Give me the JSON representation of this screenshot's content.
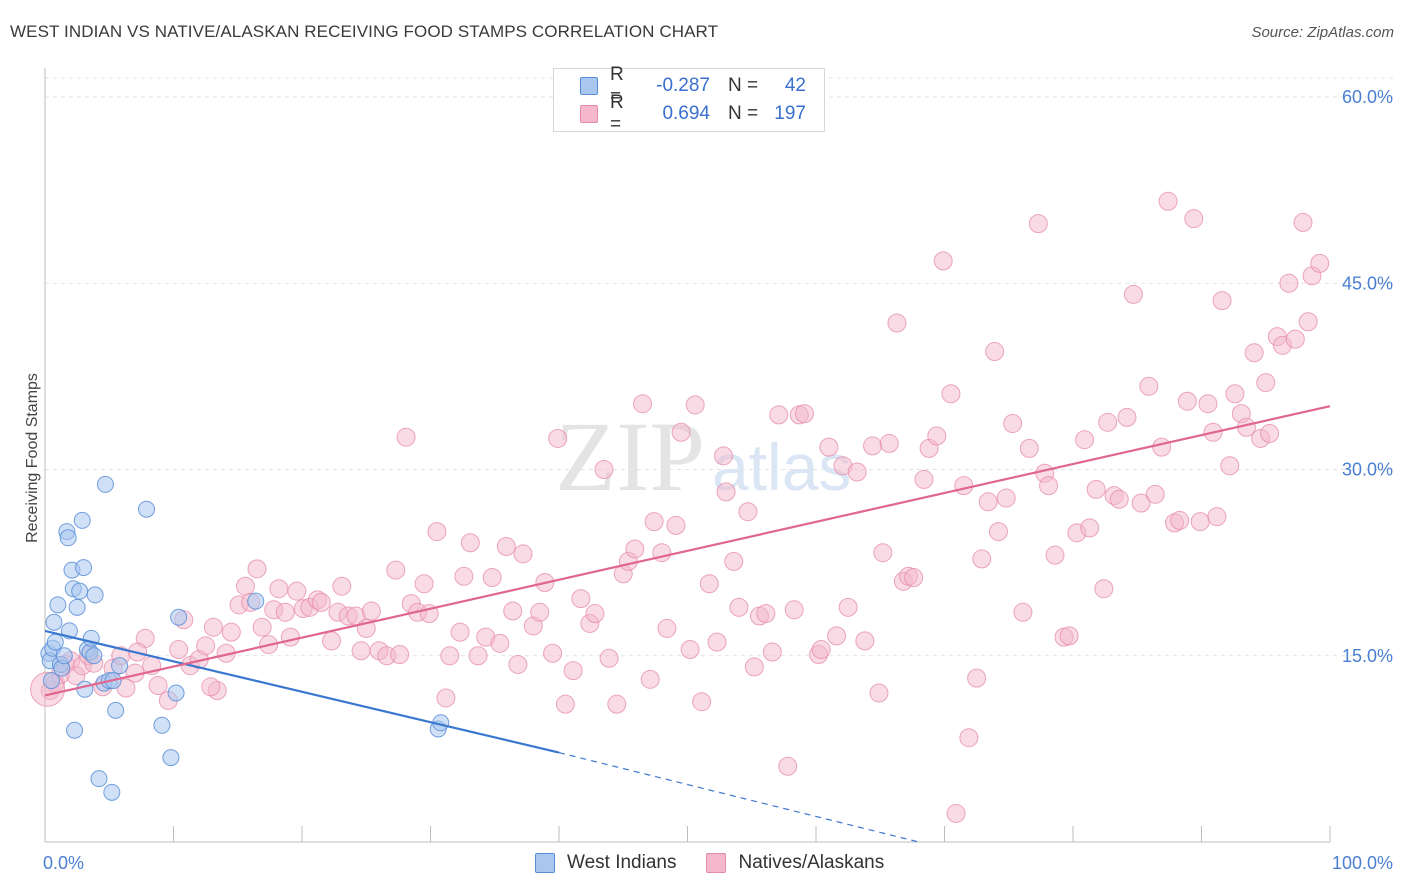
{
  "title": "WEST INDIAN VS NATIVE/ALASKAN RECEIVING FOOD STAMPS CORRELATION CHART",
  "source": "Source: ZipAtlas.com",
  "watermark": {
    "zip": "ZIP",
    "atlas": "atlas"
  },
  "legend": {
    "r_label": "R =",
    "n_label": "N =",
    "rows": [
      {
        "r": "-0.287",
        "n": "42"
      },
      {
        "r": "0.694",
        "n": "197"
      }
    ]
  },
  "colors": {
    "blue_fill": "#a9c6ee",
    "blue_stroke": "#5a8fd8",
    "blue_line": "#3a78d0",
    "pink_fill": "#f4b7cb",
    "pink_stroke": "#e58aa8",
    "pink_line": "#e0668f",
    "tick": "#4a7fd1",
    "grid": "#e2e2e2"
  },
  "chart_data": {
    "type": "scatter",
    "title": "WEST INDIAN VS NATIVE/ALASKAN RECEIVING FOOD STAMPS CORRELATION CHART",
    "xlabel": "",
    "ylabel": "Receiving Food Stamps",
    "xlim": [
      0,
      100
    ],
    "ylim": [
      0,
      60
    ],
    "x_tick_labels": [
      "0.0%",
      "100.0%"
    ],
    "y_ticks": [
      15,
      30,
      45,
      60
    ],
    "y_tick_labels": [
      "15.0%",
      "30.0%",
      "45.0%",
      "60.0%"
    ],
    "grid": true,
    "legend_position": "top-center",
    "series": [
      {
        "name": "West Indians",
        "r": -0.287,
        "n": 42,
        "trend": {
          "x": [
            0,
            40
          ],
          "y": [
            17.0,
            7.2
          ],
          "dashed_to": [
            68,
            0.0
          ]
        },
        "points": [
          [
            0.3,
            15.2
          ],
          [
            0.4,
            14.6
          ],
          [
            0.5,
            13.0
          ],
          [
            0.6,
            15.6
          ],
          [
            0.7,
            17.7
          ],
          [
            0.8,
            16.1
          ],
          [
            1.0,
            19.1
          ],
          [
            1.2,
            14.3
          ],
          [
            1.3,
            14.0
          ],
          [
            1.5,
            15.0
          ],
          [
            1.7,
            25.0
          ],
          [
            1.8,
            24.5
          ],
          [
            1.9,
            17.0
          ],
          [
            2.1,
            21.9
          ],
          [
            2.2,
            20.4
          ],
          [
            2.3,
            9.0
          ],
          [
            2.5,
            18.9
          ],
          [
            2.7,
            20.2
          ],
          [
            2.9,
            25.9
          ],
          [
            3.0,
            22.1
          ],
          [
            3.1,
            12.3
          ],
          [
            3.3,
            15.5
          ],
          [
            3.5,
            15.3
          ],
          [
            3.6,
            16.4
          ],
          [
            3.9,
            19.9
          ],
          [
            4.2,
            5.1
          ],
          [
            4.6,
            12.8
          ],
          [
            4.7,
            28.8
          ],
          [
            5.0,
            13.0
          ],
          [
            5.2,
            4.0
          ],
          [
            5.5,
            10.6
          ],
          [
            5.8,
            14.2
          ],
          [
            7.9,
            26.8
          ],
          [
            9.1,
            9.4
          ],
          [
            9.8,
            6.8
          ],
          [
            10.2,
            12.0
          ],
          [
            10.4,
            18.1
          ],
          [
            16.4,
            19.4
          ],
          [
            30.6,
            9.1
          ],
          [
            30.8,
            9.6
          ],
          [
            5.3,
            13.0
          ],
          [
            3.8,
            15.0
          ]
        ]
      },
      {
        "name": "Natives/Alaskans",
        "r": 0.694,
        "n": 197,
        "trend": {
          "x": [
            0,
            100
          ],
          "y": [
            11.8,
            35.1
          ]
        },
        "points": [
          [
            0.4,
            12.2
          ],
          [
            0.8,
            12.8
          ],
          [
            1.2,
            13.5
          ],
          [
            1.6,
            14.3
          ],
          [
            2.0,
            14.6
          ],
          [
            2.4,
            13.4
          ],
          [
            2.9,
            14.2
          ],
          [
            3.4,
            15.0
          ],
          [
            3.8,
            14.4
          ],
          [
            4.5,
            12.5
          ],
          [
            5.3,
            14.0
          ],
          [
            5.9,
            15.0
          ],
          [
            6.3,
            12.4
          ],
          [
            7.0,
            13.6
          ],
          [
            7.8,
            16.4
          ],
          [
            8.3,
            14.2
          ],
          [
            8.8,
            12.6
          ],
          [
            9.6,
            11.4
          ],
          [
            10.4,
            15.5
          ],
          [
            10.8,
            17.9
          ],
          [
            11.3,
            14.2
          ],
          [
            12.0,
            14.7
          ],
          [
            12.5,
            15.8
          ],
          [
            13.1,
            17.3
          ],
          [
            13.4,
            12.2
          ],
          [
            14.1,
            15.2
          ],
          [
            14.5,
            16.9
          ],
          [
            15.1,
            19.1
          ],
          [
            15.6,
            20.6
          ],
          [
            16.0,
            19.3
          ],
          [
            16.5,
            22.0
          ],
          [
            16.9,
            17.3
          ],
          [
            17.4,
            15.9
          ],
          [
            17.8,
            18.7
          ],
          [
            18.2,
            20.4
          ],
          [
            18.7,
            18.5
          ],
          [
            19.1,
            16.5
          ],
          [
            19.6,
            20.2
          ],
          [
            20.1,
            18.8
          ],
          [
            20.6,
            18.9
          ],
          [
            21.2,
            19.5
          ],
          [
            21.5,
            19.3
          ],
          [
            22.3,
            16.2
          ],
          [
            22.8,
            18.5
          ],
          [
            23.1,
            20.6
          ],
          [
            23.6,
            18.2
          ],
          [
            24.2,
            18.2
          ],
          [
            24.6,
            15.4
          ],
          [
            25.0,
            17.2
          ],
          [
            25.4,
            18.6
          ],
          [
            26.0,
            15.4
          ],
          [
            26.6,
            15.0
          ],
          [
            27.3,
            21.9
          ],
          [
            27.6,
            15.1
          ],
          [
            28.1,
            32.6
          ],
          [
            28.5,
            19.2
          ],
          [
            29.0,
            18.5
          ],
          [
            29.5,
            20.8
          ],
          [
            29.9,
            18.4
          ],
          [
            30.5,
            25.0
          ],
          [
            31.2,
            11.6
          ],
          [
            31.5,
            15.0
          ],
          [
            32.3,
            16.9
          ],
          [
            32.6,
            21.4
          ],
          [
            33.1,
            24.1
          ],
          [
            33.7,
            15.0
          ],
          [
            34.3,
            16.5
          ],
          [
            34.8,
            21.3
          ],
          [
            35.4,
            16.0
          ],
          [
            35.9,
            23.8
          ],
          [
            36.4,
            18.6
          ],
          [
            36.8,
            14.3
          ],
          [
            37.2,
            23.2
          ],
          [
            38.0,
            17.4
          ],
          [
            38.5,
            18.5
          ],
          [
            38.9,
            20.9
          ],
          [
            39.5,
            15.2
          ],
          [
            39.9,
            32.5
          ],
          [
            40.5,
            11.1
          ],
          [
            41.1,
            13.8
          ],
          [
            41.7,
            19.6
          ],
          [
            42.4,
            17.6
          ],
          [
            42.8,
            18.4
          ],
          [
            43.5,
            30.0
          ],
          [
            43.9,
            14.8
          ],
          [
            44.5,
            11.1
          ],
          [
            45.0,
            21.6
          ],
          [
            45.4,
            22.6
          ],
          [
            45.9,
            23.6
          ],
          [
            46.5,
            35.3
          ],
          [
            47.1,
            13.1
          ],
          [
            47.4,
            25.8
          ],
          [
            48.0,
            23.3
          ],
          [
            48.4,
            17.2
          ],
          [
            49.1,
            25.5
          ],
          [
            49.5,
            33.0
          ],
          [
            50.2,
            15.5
          ],
          [
            50.6,
            35.2
          ],
          [
            51.1,
            11.3
          ],
          [
            51.7,
            20.8
          ],
          [
            52.3,
            16.1
          ],
          [
            52.8,
            31.1
          ],
          [
            53.0,
            28.2
          ],
          [
            53.6,
            22.6
          ],
          [
            54.0,
            18.9
          ],
          [
            54.7,
            26.6
          ],
          [
            55.2,
            14.1
          ],
          [
            55.6,
            18.2
          ],
          [
            56.1,
            18.4
          ],
          [
            56.6,
            15.3
          ],
          [
            57.1,
            34.4
          ],
          [
            57.8,
            6.1
          ],
          [
            58.3,
            18.7
          ],
          [
            58.7,
            34.4
          ],
          [
            59.1,
            34.5
          ],
          [
            60.2,
            15.1
          ],
          [
            60.4,
            15.5
          ],
          [
            61.0,
            31.8
          ],
          [
            61.6,
            16.6
          ],
          [
            62.1,
            30.3
          ],
          [
            62.5,
            18.9
          ],
          [
            63.2,
            29.8
          ],
          [
            63.8,
            16.2
          ],
          [
            64.4,
            31.9
          ],
          [
            64.9,
            12.0
          ],
          [
            65.2,
            23.3
          ],
          [
            65.7,
            32.1
          ],
          [
            66.3,
            41.8
          ],
          [
            66.8,
            21.0
          ],
          [
            67.2,
            21.4
          ],
          [
            67.6,
            21.3
          ],
          [
            68.4,
            29.2
          ],
          [
            68.8,
            31.7
          ],
          [
            69.4,
            32.7
          ],
          [
            69.9,
            46.8
          ],
          [
            70.5,
            36.1
          ],
          [
            70.9,
            2.3
          ],
          [
            71.5,
            28.7
          ],
          [
            71.9,
            8.4
          ],
          [
            72.5,
            13.2
          ],
          [
            72.9,
            22.8
          ],
          [
            73.4,
            27.4
          ],
          [
            73.9,
            39.5
          ],
          [
            74.2,
            25.0
          ],
          [
            74.8,
            27.7
          ],
          [
            75.3,
            33.7
          ],
          [
            76.1,
            18.5
          ],
          [
            76.6,
            31.7
          ],
          [
            77.3,
            49.8
          ],
          [
            77.8,
            29.7
          ],
          [
            78.1,
            28.7
          ],
          [
            78.6,
            23.1
          ],
          [
            79.3,
            16.5
          ],
          [
            79.7,
            16.6
          ],
          [
            80.3,
            24.9
          ],
          [
            80.9,
            32.4
          ],
          [
            81.3,
            25.3
          ],
          [
            81.8,
            28.4
          ],
          [
            82.4,
            20.4
          ],
          [
            82.7,
            33.8
          ],
          [
            83.2,
            27.9
          ],
          [
            83.6,
            27.6
          ],
          [
            84.2,
            34.2
          ],
          [
            84.7,
            44.1
          ],
          [
            85.3,
            27.3
          ],
          [
            85.9,
            36.7
          ],
          [
            86.4,
            28.0
          ],
          [
            86.9,
            31.8
          ],
          [
            87.4,
            51.6
          ],
          [
            87.9,
            25.7
          ],
          [
            88.3,
            25.9
          ],
          [
            88.9,
            35.5
          ],
          [
            89.4,
            50.2
          ],
          [
            89.9,
            25.8
          ],
          [
            90.5,
            35.3
          ],
          [
            90.9,
            33.0
          ],
          [
            91.2,
            26.2
          ],
          [
            91.6,
            43.6
          ],
          [
            92.2,
            30.3
          ],
          [
            92.6,
            36.1
          ],
          [
            93.1,
            34.5
          ],
          [
            93.5,
            33.4
          ],
          [
            94.1,
            39.4
          ],
          [
            94.6,
            32.5
          ],
          [
            95.0,
            37.0
          ],
          [
            95.3,
            32.9
          ],
          [
            95.9,
            40.7
          ],
          [
            96.3,
            40.0
          ],
          [
            96.8,
            45.0
          ],
          [
            97.3,
            40.5
          ],
          [
            97.9,
            49.9
          ],
          [
            98.3,
            41.9
          ],
          [
            98.6,
            45.6
          ],
          [
            99.2,
            46.6
          ],
          [
            12.9,
            12.5
          ],
          [
            7.2,
            15.3
          ]
        ]
      }
    ]
  },
  "bottom_legend": [
    {
      "label": "West Indians"
    },
    {
      "label": "Natives/Alaskans"
    }
  ]
}
